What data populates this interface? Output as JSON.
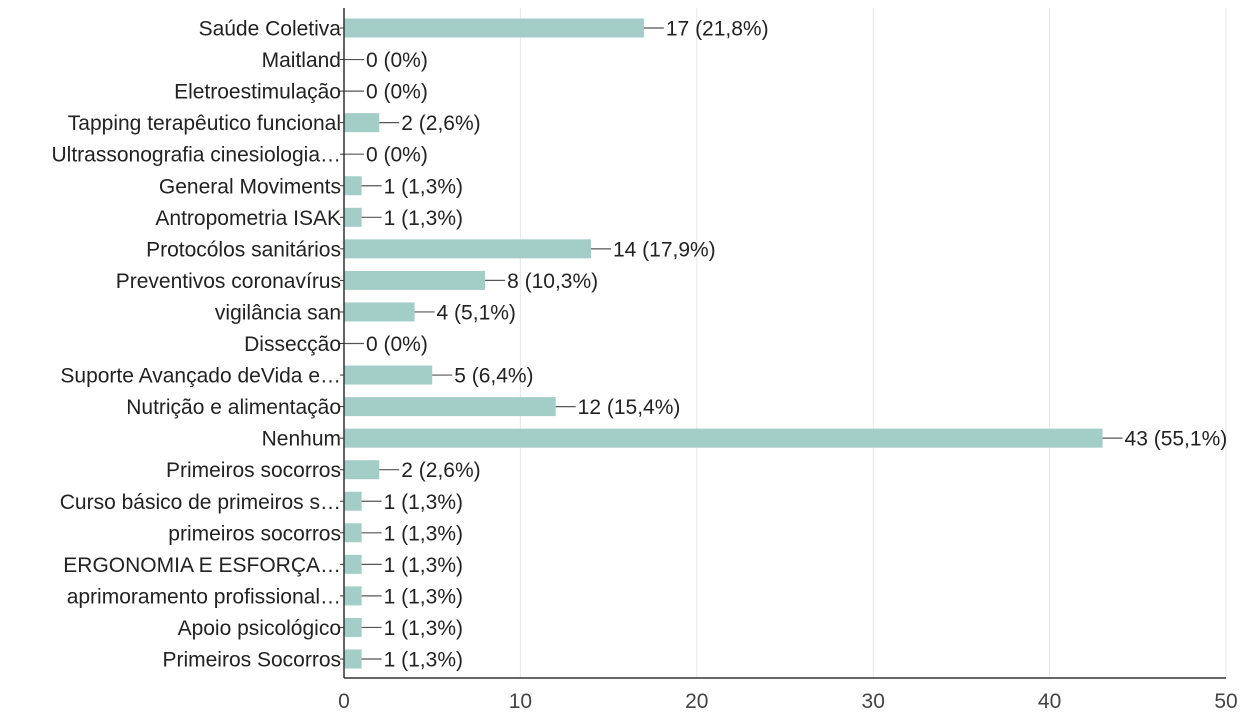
{
  "chart_data": {
    "type": "bar",
    "orientation": "horizontal",
    "categories": [
      "Saúde Coletiva",
      "Maitland",
      "Eletroestimulação",
      "Tapping terapêutico funcional",
      "Ultrassonografia cinesiologia…",
      "General Moviments",
      "Antropometria ISAK",
      "Protocólos sanitários",
      "Preventivos coronavírus",
      "vigilância san",
      "Dissecção",
      "Suporte Avançado deVida e…",
      "Nutrição e alimentação",
      "Nenhum",
      "Primeiros socorros",
      "Curso básico de primeiros s…",
      "primeiros socorros",
      "ERGONOMIA E ESFORÇA…",
      "aprimoramento profissional…",
      "Apoio psicológico",
      "Primeiros Socorros"
    ],
    "values": [
      17,
      0,
      0,
      2,
      0,
      1,
      1,
      14,
      8,
      4,
      0,
      5,
      12,
      43,
      2,
      1,
      1,
      1,
      1,
      1,
      1
    ],
    "data_labels": [
      "17 (21,8%)",
      "0 (0%)",
      "0 (0%)",
      "2 (2,6%)",
      "0 (0%)",
      "1 (1,3%)",
      "1 (1,3%)",
      "14 (17,9%)",
      "8 (10,3%)",
      "4 (5,1%)",
      "0 (0%)",
      "5 (6,4%)",
      "12 (15,4%)",
      "43 (55,1%)",
      "2 (2,6%)",
      "1 (1,3%)",
      "1 (1,3%)",
      "1 (1,3%)",
      "1 (1,3%)",
      "1 (1,3%)",
      "1 (1,3%)"
    ],
    "xlim": [
      0,
      50
    ],
    "xticks": [
      "0",
      "10",
      "20",
      "30",
      "40",
      "50"
    ],
    "title": "",
    "xlabel": "",
    "ylabel": "",
    "grid": true,
    "colors": {
      "bar": "#a3cdc7",
      "grid": "#e6e6e6",
      "axis": "#333333",
      "text": "#222222",
      "leader": "#555555",
      "tick_text": "#444444"
    }
  }
}
